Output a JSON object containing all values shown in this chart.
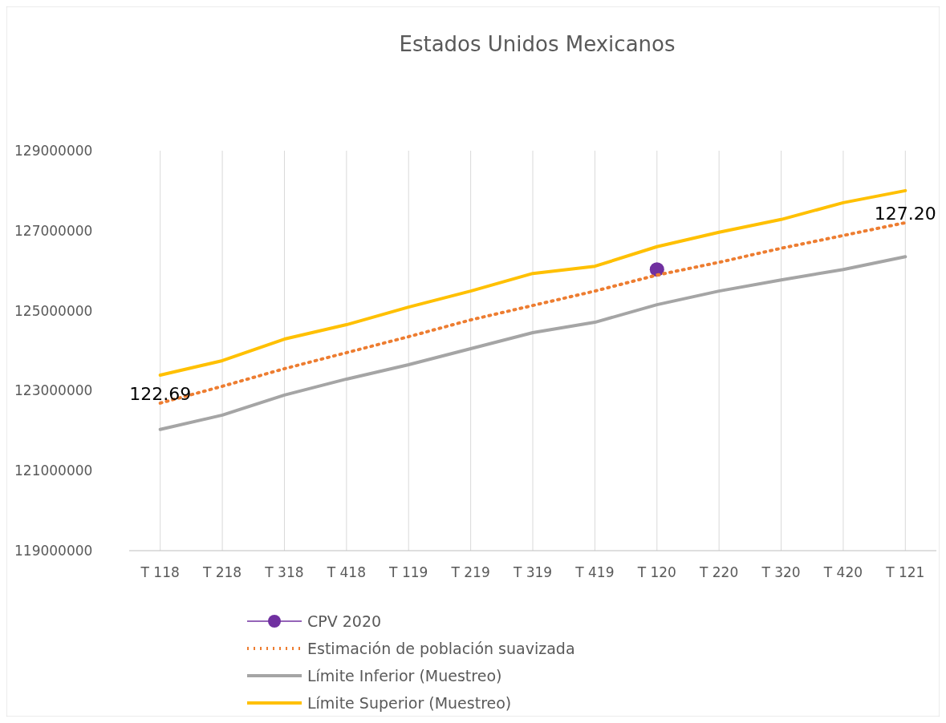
{
  "chart_data": {
    "type": "line",
    "title": "Estados Unidos Mexicanos",
    "categories": [
      "T 118",
      "T 218",
      "T 318",
      "T 418",
      "T 119",
      "T 219",
      "T 319",
      "T 419",
      "T 120",
      "T 220",
      "T 320",
      "T 420",
      "T 121"
    ],
    "series": [
      {
        "name": "CPV 2020",
        "color": "#7030a0",
        "marker": "circle",
        "values": [
          null,
          null,
          null,
          null,
          null,
          null,
          null,
          null,
          126030000,
          null,
          null,
          null,
          null
        ]
      },
      {
        "name": "Estimación de población suavizada",
        "color": "#ed7d31",
        "line_style": "dotted",
        "marker": "none",
        "values": [
          122690000,
          123110000,
          123550000,
          123950000,
          124350000,
          124770000,
          125130000,
          125490000,
          125890000,
          126210000,
          126560000,
          126880000,
          127200000
        ]
      },
      {
        "name": "Límite Inferior (Muestreo)",
        "color": "#a5a5a5",
        "line_style": "solid",
        "marker": "none",
        "values": [
          122030000,
          122390000,
          122890000,
          123290000,
          123650000,
          124050000,
          124450000,
          124710000,
          125150000,
          125490000,
          125770000,
          126030000,
          126350000
        ]
      },
      {
        "name": "Límite Superior (Muestreo)",
        "color": "#ffc000",
        "line_style": "solid",
        "marker": "none",
        "values": [
          123390000,
          123750000,
          124290000,
          124650000,
          125090000,
          125490000,
          125930000,
          126110000,
          126600000,
          126960000,
          127280000,
          127700000,
          128000000
        ]
      }
    ],
    "ylim": [
      119000000,
      129000000
    ],
    "yticks": [
      119000000,
      121000000,
      123000000,
      125000000,
      127000000,
      129000000
    ],
    "grid": "x",
    "legend": "bottom",
    "annotations": [
      {
        "text": "122.69",
        "x": "T 118",
        "y": 122690000
      },
      {
        "text": "127.20",
        "x": "T 121",
        "y": 127200000
      }
    ]
  }
}
